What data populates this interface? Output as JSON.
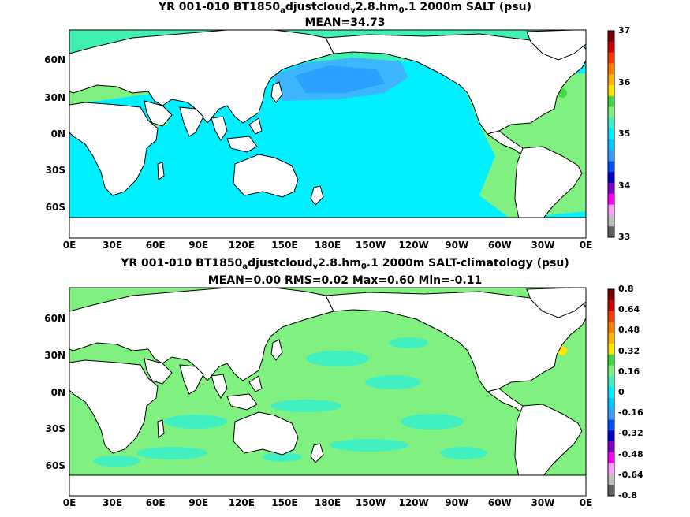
{
  "panels": [
    {
      "title_parts": [
        "YR 001-010 BT1850",
        "a",
        "djustcloud",
        "v",
        "2.8.hm",
        "0",
        ".1 2000m SALT (psu)"
      ],
      "subtitle": "MEAN=34.73",
      "colorbar": {
        "ticks": [
          "37",
          "36",
          "35",
          "34",
          "33"
        ],
        "colors": [
          "#7a0000",
          "#c80000",
          "#ff3a00",
          "#ff7d00",
          "#ffb400",
          "#ffe600",
          "#44d844",
          "#80f080",
          "#3ff0c8",
          "#00f0ff",
          "#00c8ff",
          "#3b9cff",
          "#0050ff",
          "#0000c8",
          "#8000c8",
          "#ff00ff",
          "#ffa0ff",
          "#c0c0c0",
          "#606060"
        ]
      },
      "legend_level_colors": {
        "ocean_base": "#00f0ff",
        "north_pacific": "#3bb6ff",
        "north_pacific_core": "#2aa0ff",
        "atlantic": "#80f080",
        "arctic": "#40f0b0",
        "salty_spot": "#44d844"
      }
    },
    {
      "title_parts": [
        "YR 001-010 BT1850",
        "a",
        "djustcloud",
        "v",
        "2.8.hm",
        "0",
        ".1 2000m SALT-climatology (psu)"
      ],
      "subtitle": "MEAN=0.00   RMS=0.02   Max=0.60   Min=-0.11",
      "colorbar": {
        "ticks": [
          "0.8",
          "0.64",
          "0.48",
          "0.32",
          "0.16",
          "0",
          "-0.16",
          "-0.32",
          "-0.48",
          "-0.64",
          "-0.8"
        ],
        "colors": [
          "#7a0000",
          "#c80000",
          "#ff3a00",
          "#ff7d00",
          "#ffb400",
          "#ffe600",
          "#44d844",
          "#80f080",
          "#3ff0c8",
          "#00f0ff",
          "#00c8ff",
          "#3b9cff",
          "#0050ff",
          "#0000c8",
          "#8000c8",
          "#ff00ff",
          "#ffa0ff",
          "#c0c0c0",
          "#606060"
        ]
      },
      "legend_level_colors": {
        "ocean_base": "#80f080",
        "anomaly_patch": "#40f0c0",
        "positive_spot": "#ffe600"
      }
    }
  ],
  "axes": {
    "x_ticks": [
      "0E",
      "30E",
      "60E",
      "90E",
      "120E",
      "150E",
      "180E",
      "150W",
      "120W",
      "90W",
      "60W",
      "30W",
      "0E"
    ],
    "y_ticks": [
      "60N",
      "30N",
      "0N",
      "30S",
      "60S"
    ]
  },
  "land_color": "#ffffff",
  "coast_color": "#000000"
}
